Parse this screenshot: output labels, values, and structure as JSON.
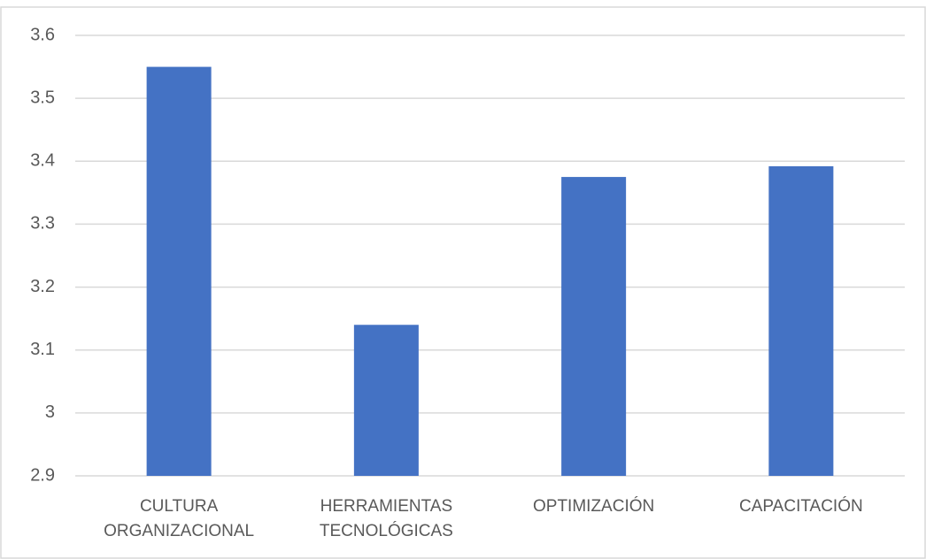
{
  "chart_data": {
    "type": "bar",
    "categories": [
      "CULTURA\nORGANIZACIONAL",
      "HERRAMIENTAS\nTECNOLÓGICAS",
      "OPTIMIZACIÓN",
      "CAPACITACIÓN"
    ],
    "values": [
      3.55,
      3.14,
      3.375,
      3.392
    ],
    "color": "#4472c4",
    "ylim": [
      2.9,
      3.6
    ],
    "yticks": [
      2.9,
      3,
      3.1,
      3.2,
      3.3,
      3.4,
      3.5,
      3.6
    ],
    "grid": true
  }
}
